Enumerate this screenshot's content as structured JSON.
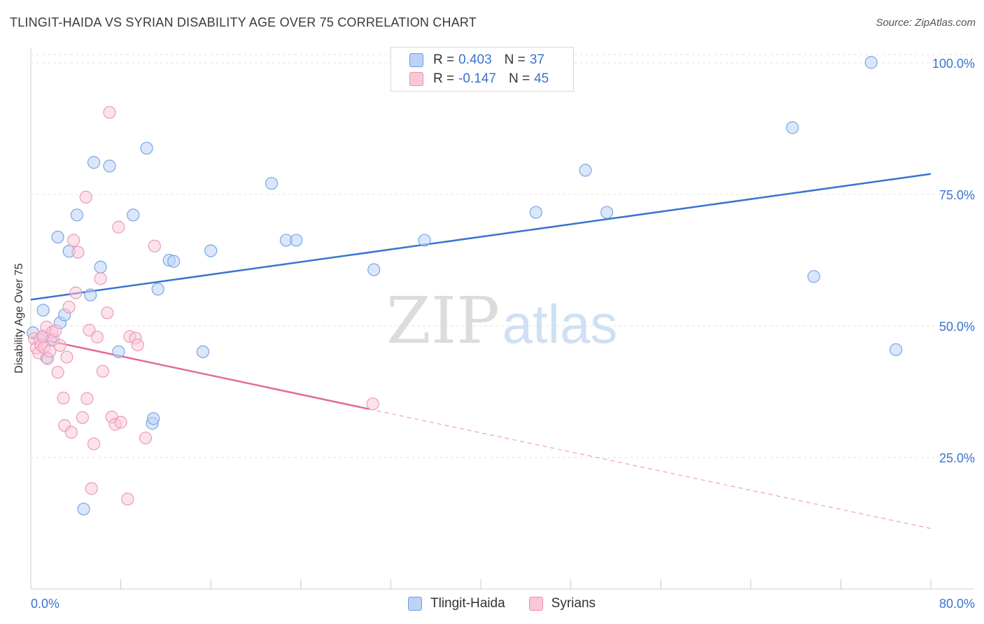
{
  "header": {
    "title": "TLINGIT-HAIDA VS SYRIAN DISABILITY AGE OVER 75 CORRELATION CHART",
    "source": "Source: ZipAtlas.com"
  },
  "watermark": {
    "zip": "ZIP",
    "atlas": "atlas"
  },
  "legend": {
    "rows": [
      {
        "r_label": "R =",
        "r_value": "0.403",
        "n_label": "N =",
        "n_value": "37"
      },
      {
        "r_label": "R =",
        "r_value": "-0.147",
        "n_label": "N =",
        "n_value": "45"
      }
    ]
  },
  "bottom_legend": {
    "blue": "Tlingit-Haida",
    "pink": "Syrians"
  },
  "colors": {
    "blue": "#3a74d0",
    "blue_fill": "#bcd3f5",
    "pink": "#e36b98",
    "pink_fill": "#f9c8d8",
    "grid": "#e3e3e3"
  },
  "chart_data": {
    "type": "scatter",
    "title": "TLINGIT-HAIDA VS SYRIAN DISABILITY AGE OVER 75 CORRELATION CHART",
    "xlabel": "",
    "ylabel": "Disability Age Over 75",
    "xlim": [
      0,
      80
    ],
    "ylim": [
      0,
      100
    ],
    "x_tick_labels": [
      "0.0%",
      "80.0%"
    ],
    "y_ticks": [
      25,
      50,
      75,
      100
    ],
    "y_tick_labels": [
      "25.0%",
      "50.0%",
      "75.0%",
      "100.0%"
    ],
    "series": [
      {
        "name": "Tlingit-Haida",
        "color": "#3a74d0",
        "points": [
          [
            0.2,
            48.7
          ],
          [
            1.0,
            47.9
          ],
          [
            1.1,
            53.0
          ],
          [
            1.4,
            44.0
          ],
          [
            1.8,
            47.3
          ],
          [
            2.4,
            66.9
          ],
          [
            2.6,
            50.6
          ],
          [
            3.0,
            52.1
          ],
          [
            3.4,
            64.2
          ],
          [
            4.1,
            71.1
          ],
          [
            4.7,
            15.2
          ],
          [
            5.3,
            55.9
          ],
          [
            5.6,
            81.1
          ],
          [
            6.2,
            61.2
          ],
          [
            7.0,
            80.4
          ],
          [
            7.8,
            45.1
          ],
          [
            9.1,
            71.1
          ],
          [
            10.3,
            83.8
          ],
          [
            10.8,
            31.5
          ],
          [
            10.9,
            32.4
          ],
          [
            11.3,
            57.0
          ],
          [
            12.3,
            62.5
          ],
          [
            12.7,
            62.3
          ],
          [
            15.3,
            45.1
          ],
          [
            16.0,
            64.3
          ],
          [
            21.4,
            77.1
          ],
          [
            22.7,
            66.3
          ],
          [
            23.6,
            66.3
          ],
          [
            30.5,
            60.7
          ],
          [
            35.0,
            66.3
          ],
          [
            44.9,
            71.6
          ],
          [
            49.3,
            79.6
          ],
          [
            51.2,
            71.6
          ],
          [
            67.7,
            87.7
          ],
          [
            69.6,
            59.4
          ],
          [
            74.7,
            100.1
          ],
          [
            76.9,
            45.5
          ]
        ]
      },
      {
        "name": "Syrians",
        "color": "#e36b98",
        "points": [
          [
            0.3,
            47.6
          ],
          [
            0.5,
            45.8
          ],
          [
            0.7,
            44.9
          ],
          [
            0.8,
            47.4
          ],
          [
            0.9,
            46.4
          ],
          [
            1.1,
            48.1
          ],
          [
            1.2,
            45.9
          ],
          [
            1.4,
            49.8
          ],
          [
            1.5,
            43.8
          ],
          [
            1.7,
            45.2
          ],
          [
            1.9,
            48.8
          ],
          [
            2.0,
            47.4
          ],
          [
            2.2,
            49.1
          ],
          [
            2.4,
            41.2
          ],
          [
            2.6,
            46.3
          ],
          [
            2.9,
            36.3
          ],
          [
            3.0,
            31.1
          ],
          [
            3.2,
            44.1
          ],
          [
            3.4,
            53.6
          ],
          [
            3.6,
            29.8
          ],
          [
            3.8,
            66.3
          ],
          [
            4.0,
            56.3
          ],
          [
            4.2,
            64.0
          ],
          [
            4.6,
            32.6
          ],
          [
            4.9,
            74.5
          ],
          [
            5.0,
            36.2
          ],
          [
            5.2,
            49.2
          ],
          [
            5.4,
            19.1
          ],
          [
            5.6,
            27.6
          ],
          [
            5.9,
            47.9
          ],
          [
            6.2,
            59.0
          ],
          [
            6.4,
            41.4
          ],
          [
            6.8,
            52.5
          ],
          [
            7.0,
            90.6
          ],
          [
            7.2,
            32.7
          ],
          [
            7.5,
            31.3
          ],
          [
            7.8,
            68.8
          ],
          [
            8.0,
            31.7
          ],
          [
            8.6,
            17.1
          ],
          [
            8.8,
            48.0
          ],
          [
            9.3,
            47.7
          ],
          [
            9.5,
            46.4
          ],
          [
            10.2,
            28.7
          ],
          [
            11.0,
            65.2
          ],
          [
            30.4,
            35.2
          ]
        ]
      }
    ],
    "trend_lines": [
      {
        "series": "Tlingit-Haida",
        "x": [
          0,
          80
        ],
        "y": [
          55.0,
          78.9
        ],
        "style": "solid"
      },
      {
        "series": "Syrians",
        "x": [
          0,
          30.1
        ],
        "y": [
          47.9,
          34.2
        ],
        "style": "solid"
      },
      {
        "series": "Syrians",
        "x": [
          30.1,
          80
        ],
        "y": [
          34.2,
          11.5
        ],
        "style": "dashed"
      }
    ],
    "legend_position": "top-center"
  }
}
